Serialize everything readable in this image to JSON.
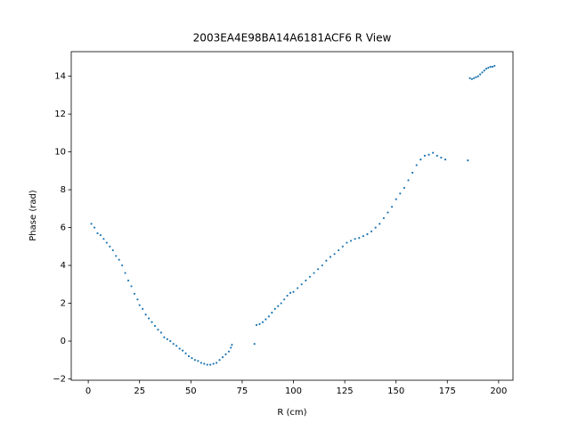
{
  "chart_data": {
    "type": "scatter",
    "title": "2003EA4E98BA14A6181ACF6 R View",
    "x_label": "R (cm)",
    "y_label": "Phase (rad)",
    "color": "#1f77b4",
    "x": [
      1.5,
      3,
      4.5,
      6,
      7.5,
      9,
      10.5,
      12,
      13.5,
      15,
      16.5,
      18,
      19.5,
      21,
      22.5,
      24,
      25,
      26.5,
      28,
      29.5,
      31,
      32.5,
      34,
      35.5,
      37,
      38.5,
      40,
      41.5,
      43,
      44.5,
      46,
      47.5,
      49,
      50.5,
      52,
      53.5,
      55,
      56.5,
      58,
      59.5,
      61,
      62.5,
      64,
      65.5,
      67,
      68.5,
      69.5,
      70,
      81,
      82,
      83.5,
      85,
      86.5,
      88,
      89.5,
      91,
      92.5,
      94,
      95.5,
      97,
      98.5,
      100,
      102,
      104,
      106,
      108,
      110,
      112,
      114,
      116,
      118,
      120,
      122,
      124,
      126,
      128,
      130,
      132,
      134,
      136,
      138,
      140,
      142,
      144,
      146,
      148,
      150,
      152,
      154,
      156,
      158,
      160,
      162,
      164,
      166,
      168,
      170,
      172,
      174,
      185,
      186,
      187,
      188,
      189,
      190,
      191,
      192,
      193,
      194,
      195,
      196,
      197,
      198
    ],
    "values": [
      6.2,
      6.0,
      5.7,
      5.6,
      5.4,
      5.2,
      5.0,
      4.8,
      4.5,
      4.3,
      4.0,
      3.6,
      3.2,
      2.9,
      2.5,
      2.2,
      1.9,
      1.7,
      1.4,
      1.2,
      1.0,
      0.8,
      0.6,
      0.45,
      0.2,
      0.1,
      0.0,
      -0.15,
      -0.25,
      -0.4,
      -0.5,
      -0.65,
      -0.8,
      -0.9,
      -1.0,
      -1.05,
      -1.15,
      -1.2,
      -1.25,
      -1.25,
      -1.2,
      -1.15,
      -1.0,
      -0.85,
      -0.7,
      -0.55,
      -0.35,
      -0.2,
      -0.15,
      0.85,
      0.9,
      1.0,
      1.15,
      1.3,
      1.5,
      1.7,
      1.85,
      2.0,
      2.2,
      2.4,
      2.55,
      2.6,
      2.8,
      3.0,
      3.2,
      3.4,
      3.6,
      3.8,
      4.0,
      4.25,
      4.45,
      4.6,
      4.8,
      5.0,
      5.2,
      5.3,
      5.4,
      5.45,
      5.55,
      5.65,
      5.8,
      6.0,
      6.2,
      6.5,
      6.8,
      7.1,
      7.5,
      7.8,
      8.1,
      8.5,
      8.9,
      9.3,
      9.6,
      9.8,
      9.85,
      9.95,
      9.8,
      9.7,
      9.6,
      9.55,
      13.9,
      13.85,
      13.9,
      13.95,
      14.0,
      14.1,
      14.2,
      14.3,
      14.4,
      14.45,
      14.5,
      14.5,
      14.55
    ],
    "xlim": [
      -8.3,
      207
    ],
    "ylim": [
      -2.07,
      15.3
    ],
    "xticks": [
      0,
      25,
      50,
      75,
      100,
      125,
      150,
      175,
      200
    ],
    "yticks": [
      {
        "value": -2,
        "label": "−2"
      },
      0,
      2,
      4,
      6,
      8,
      10,
      12,
      14
    ]
  }
}
